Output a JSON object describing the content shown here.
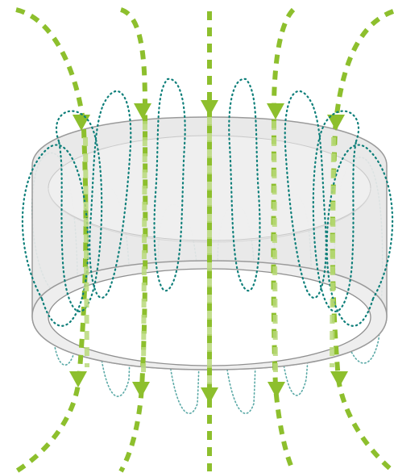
{
  "colors": {
    "field_line": "#8dbf2d",
    "field_line_light": "#b9d97a",
    "loop_dark": "#0e7f7a",
    "loop_light": "#5aa9a6",
    "ring_fill": "#e7e7e7",
    "ring_edge": "#9a9a9a",
    "ring_inner": "#f4f4f4"
  },
  "components": {
    "ring": "hollow-cylinder",
    "field_lines": "dashed-arrows-downward",
    "current_loops": "dotted-vertical-loops"
  }
}
